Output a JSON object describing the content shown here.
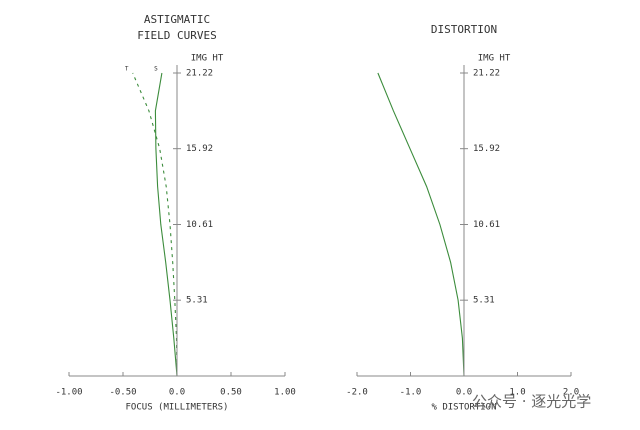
{
  "chart_data": [
    {
      "type": "line",
      "title": [
        "ASTIGMATIC",
        "FIELD CURVES"
      ],
      "y_label": "IMG HT",
      "x_label": "FOCUS (MILLIMETERS)",
      "y": [
        0,
        2.65,
        5.31,
        7.96,
        10.61,
        13.27,
        15.92,
        18.57,
        21.22
      ],
      "series": [
        {
          "name": "T",
          "color": "#3c8c3c",
          "style": "dashed",
          "values": [
            0,
            -0.005,
            -0.02,
            -0.04,
            -0.065,
            -0.1,
            -0.16,
            -0.26,
            -0.41
          ]
        },
        {
          "name": "S",
          "color": "#3c8c3c",
          "style": "solid",
          "values": [
            0,
            -0.03,
            -0.065,
            -0.105,
            -0.15,
            -0.18,
            -0.195,
            -0.2,
            -0.14
          ]
        }
      ],
      "xlim": [
        -1,
        1
      ],
      "xticks": [
        {
          "value": -1,
          "label": "-1.00"
        },
        {
          "value": -0.5,
          "label": "-0.50"
        },
        {
          "value": 0,
          "label": "0.0"
        },
        {
          "value": 0.5,
          "label": "0.50"
        },
        {
          "value": 1,
          "label": "1.00"
        }
      ],
      "ylim": [
        0,
        21.22
      ],
      "yticks": [
        5.31,
        10.61,
        15.92,
        21.22
      ]
    },
    {
      "type": "line",
      "title": [
        "DISTORTION"
      ],
      "y_label": "IMG HT",
      "x_label": "% DISTORTION",
      "y": [
        0,
        2.65,
        5.31,
        7.96,
        10.61,
        13.27,
        15.92,
        18.57,
        21.22
      ],
      "series": [
        {
          "color": "#3c8c3c",
          "style": "solid",
          "values": [
            0,
            -0.03,
            -0.11,
            -0.25,
            -0.45,
            -0.7,
            -1.01,
            -1.32,
            -1.61
          ]
        }
      ],
      "xlim": [
        -2,
        2
      ],
      "xticks": [
        {
          "value": -2,
          "label": "-2.0"
        },
        {
          "value": -1,
          "label": "-1.0"
        },
        {
          "value": 0,
          "label": "0.0"
        },
        {
          "value": 1,
          "label": "1.0"
        },
        {
          "value": 2,
          "label": "2.0"
        }
      ],
      "ylim": [
        0,
        21.22
      ],
      "yticks": [
        5.31,
        10.61,
        15.92,
        21.22
      ]
    }
  ],
  "watermark": "公众号 · 逐光光学"
}
